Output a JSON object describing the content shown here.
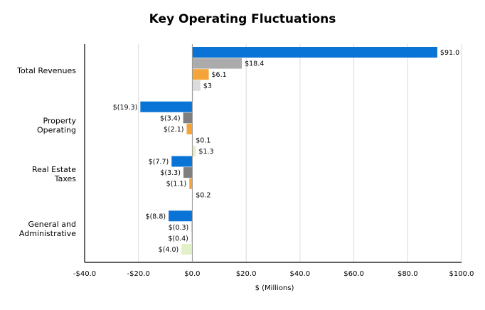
{
  "chart_data": {
    "type": "bar",
    "orientation": "horizontal",
    "title": "Key Operating Fluctuations",
    "xlabel": "$ (Millions)",
    "ylabel": "",
    "xlim": [
      -40,
      100
    ],
    "x_ticks": [
      -40,
      -20,
      0,
      20,
      40,
      60,
      80,
      100
    ],
    "x_tick_labels": [
      "-$40.0",
      "-$20.0",
      "$0.0",
      "$20.0",
      "$40.0",
      "$60.0",
      "$80.0",
      "$100.0"
    ],
    "grid": "vertical",
    "legend": "none",
    "categories": [
      [
        "Total Revenues"
      ],
      [
        "Property",
        "Operating"
      ],
      [
        "Real Estate",
        "Taxes"
      ],
      [
        "General and",
        "Administrative"
      ]
    ],
    "series_colors": [
      "#0a74d6",
      "#ababab",
      "#f5a43a",
      "#dcdcdc",
      "#e2f0c8"
    ],
    "groups": [
      [
        {
          "value": 91.0,
          "label": "$91.0",
          "color": "#0a74d6"
        },
        {
          "value": 18.4,
          "label": "$18.4",
          "color": "#ababab"
        },
        {
          "value": 6.1,
          "label": "$6.1",
          "color": "#f5a43a"
        },
        {
          "value": 3.0,
          "label": "$3",
          "color": "#dcdcdc"
        },
        {
          "value": 0.0,
          "label": "",
          "color": "#f6c7c7"
        }
      ],
      [
        {
          "value": -19.3,
          "label": "$(19.3)",
          "color": "#0a74d6"
        },
        {
          "value": -3.4,
          "label": "$(3.4)",
          "color": "#7f7f7f"
        },
        {
          "value": -2.1,
          "label": "$(2.1)",
          "color": "#f5a43a"
        },
        {
          "value": 0.1,
          "label": "$0.1",
          "color": "#dcdcdc"
        },
        {
          "value": 1.3,
          "label": "$1.3",
          "color": "#e2f0c8"
        }
      ],
      [
        {
          "value": -7.7,
          "label": "$(7.7)",
          "color": "#0a74d6"
        },
        {
          "value": -3.3,
          "label": "$(3.3)",
          "color": "#7f7f7f"
        },
        {
          "value": -1.1,
          "label": "$(1.1)",
          "color": "#f5a43a"
        },
        {
          "value": 0.2,
          "label": "$0.2",
          "color": "#dcdcdc"
        }
      ],
      [
        {
          "value": -8.8,
          "label": "$(8.8)",
          "color": "#0a74d6"
        },
        {
          "value": -0.3,
          "label": "$(0.3)",
          "color": "#f5a43a"
        },
        {
          "value": -0.4,
          "label": "$(0.4)",
          "color": "#dcdcdc"
        },
        {
          "value": -4.0,
          "label": "$(4.0)",
          "color": "#e2f0c8"
        }
      ]
    ]
  }
}
